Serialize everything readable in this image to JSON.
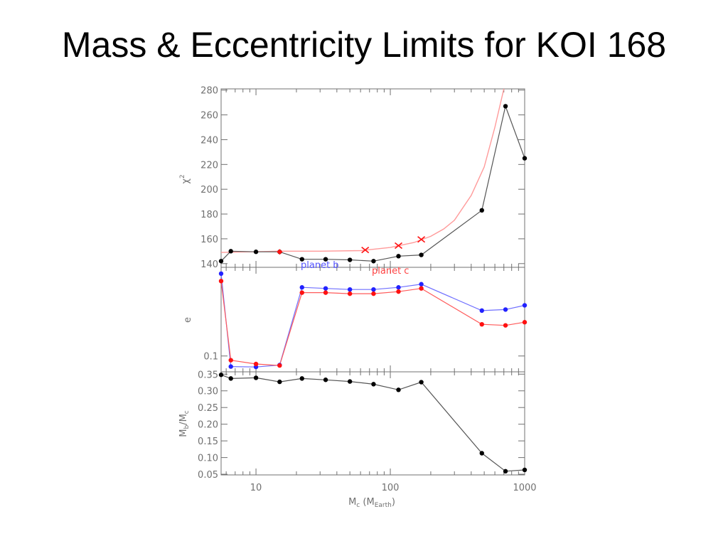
{
  "slide": {
    "title": "Mass & Eccentricity Limits for KOI 168"
  },
  "colors": {
    "black_series": "#000000",
    "blue_series": "#2222ff",
    "red_series": "#ff1111",
    "model_curve": "#ff9a9a",
    "axis": "#707070"
  },
  "chart_data": {
    "type": "line",
    "x_axis": {
      "label_main": "M",
      "label_main_sub": "c",
      "label_paren_main": "M",
      "label_paren_sub": "Earth",
      "scale": "log",
      "xlim": [
        5.5,
        1000
      ],
      "tick_values": [
        10,
        100,
        1000
      ],
      "tick_labels": [
        "10",
        "100",
        "1000"
      ]
    },
    "panels": [
      {
        "id": "chi2",
        "ylabel_main": "χ",
        "ylabel_sup": "2",
        "ylim": [
          137,
          281
        ],
        "ytick_values": [
          140,
          160,
          180,
          200,
          220,
          240,
          260,
          280
        ],
        "ytick_labels": [
          "140",
          "160",
          "180",
          "200",
          "220",
          "240",
          "260",
          "280"
        ],
        "series": [
          {
            "x": [
              5.5,
              6.5,
              10,
              15,
              22,
              33,
              50,
              75,
              115,
              170,
              480,
              720,
              1000
            ],
            "y": [
              142,
              150,
              149.5,
              149.5,
              143.5,
              143.5,
              143,
              142,
              146,
              147,
              183,
              267,
              225
            ]
          },
          {
            "marker": "x",
            "x": [
              15,
              65,
              115,
              170
            ],
            "y": [
              149.5,
              151,
              154.5,
              159.5
            ]
          }
        ],
        "curve": {
          "x": [
            5.5,
            15,
            30,
            60,
            100,
            150,
            200,
            250,
            300,
            400,
            500,
            600,
            700
          ],
          "y": [
            149,
            150,
            150,
            150.5,
            153,
            157,
            162,
            168,
            175,
            195,
            218,
            250,
            281
          ]
        }
      },
      {
        "id": "e",
        "ylabel_main": "e",
        "ylim": [
          0.025,
          0.52
        ],
        "ytick_values": [
          0.1
        ],
        "ytick_labels": [
          "0.1"
        ],
        "legend": [
          {
            "name": "planet b"
          },
          {
            "name": "planet c"
          }
        ],
        "series": [
          {
            "x": [
              5.5,
              6.5,
              10,
              15,
              22,
              33,
              50,
              75,
              115,
              170,
              480,
              720,
              1000
            ],
            "y": [
              0.49,
              0.05,
              0.048,
              0.057,
              0.425,
              0.42,
              0.415,
              0.415,
              0.425,
              0.44,
              0.315,
              0.32,
              0.34
            ]
          },
          {
            "x": [
              5.5,
              6.5,
              10,
              15,
              22,
              33,
              50,
              75,
              115,
              170,
              480,
              720,
              1000
            ],
            "y": [
              0.455,
              0.08,
              0.062,
              0.055,
              0.4,
              0.4,
              0.395,
              0.395,
              0.405,
              0.42,
              0.25,
              0.245,
              0.26
            ]
          }
        ]
      },
      {
        "id": "mass-ratio",
        "ylabel_main": "M",
        "ylabel_main_sub": "b",
        "ylabel_sep": "/",
        "ylabel_den": "M",
        "ylabel_den_sub": "c",
        "ylim": [
          0.048,
          0.357
        ],
        "ytick_values": [
          0.05,
          0.1,
          0.15,
          0.2,
          0.25,
          0.3,
          0.35
        ],
        "ytick_labels": [
          "0.05",
          "0.10",
          "0.15",
          "0.20",
          "0.25",
          "0.30",
          "0.35"
        ],
        "series": [
          {
            "x": [
              5.5,
              6.5,
              10,
              15,
              22,
              33,
              50,
              75,
              115,
              170,
              480,
              720,
              1000
            ],
            "y": [
              0.348,
              0.337,
              0.339,
              0.327,
              0.337,
              0.333,
              0.328,
              0.32,
              0.303,
              0.326,
              0.113,
              0.059,
              0.063
            ]
          }
        ]
      }
    ]
  }
}
